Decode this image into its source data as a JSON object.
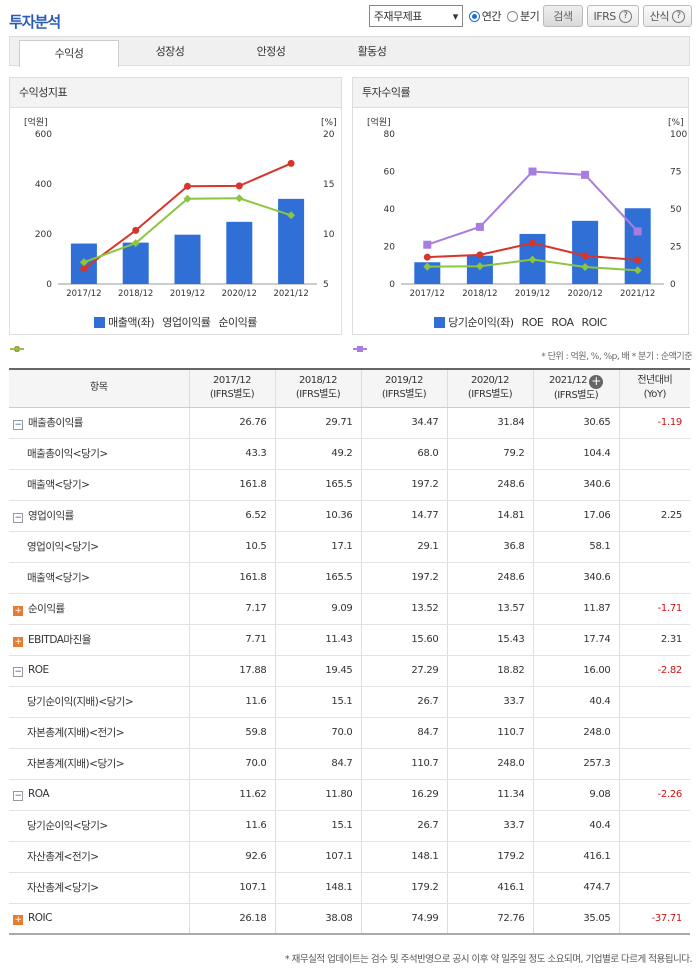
{
  "title": "투자분석",
  "controls": {
    "select": "주재무제표",
    "radio_annual": "연간",
    "radio_quarter": "분기",
    "search": "검색",
    "ifrs": "IFRS",
    "formula": "산식"
  },
  "tabs": [
    "수익성",
    "성장성",
    "안정성",
    "활동성"
  ],
  "colors": {
    "bar": "#2f6fd6",
    "red": "#d8352a",
    "green": "#8cc63f",
    "purple": "#a77ee0"
  },
  "chart_data": [
    {
      "type": "bar+line",
      "title": "수익성지표",
      "categories": [
        "2017/12",
        "2018/12",
        "2019/12",
        "2020/12",
        "2021/12"
      ],
      "left_unit": "[억원]",
      "right_unit": "[%]",
      "ylim_left": [
        0,
        600
      ],
      "ylim_right": [
        5,
        20
      ],
      "left_ticks": [
        "600",
        "400",
        "200",
        "0"
      ],
      "right_ticks": [
        "20",
        "15",
        "10",
        "5"
      ],
      "series": [
        {
          "name": "매출액(좌)",
          "type": "bar",
          "values": [
            161.8,
            165.5,
            197.2,
            248.6,
            340.6
          ]
        },
        {
          "name": "영업이익률",
          "type": "line",
          "values": [
            6.52,
            10.36,
            14.77,
            14.81,
            17.06
          ]
        },
        {
          "name": "순이익률",
          "type": "line",
          "values": [
            7.17,
            9.09,
            13.52,
            13.57,
            11.87
          ]
        }
      ]
    },
    {
      "type": "bar+line",
      "title": "투자수익률",
      "categories": [
        "2017/12",
        "2018/12",
        "2019/12",
        "2020/12",
        "2021/12"
      ],
      "left_unit": "[억원]",
      "right_unit": "[%]",
      "ylim_left": [
        0,
        80
      ],
      "ylim_right": [
        0,
        100
      ],
      "left_ticks": [
        "80",
        "60",
        "40",
        "20",
        "0"
      ],
      "right_ticks": [
        "100",
        "75",
        "50",
        "25",
        "0"
      ],
      "series": [
        {
          "name": "당기순이익(좌)",
          "type": "bar",
          "values": [
            11.6,
            15.1,
            26.7,
            33.7,
            40.4
          ]
        },
        {
          "name": "ROE",
          "type": "line",
          "values": [
            17.88,
            19.45,
            27.29,
            18.82,
            16.0
          ]
        },
        {
          "name": "ROA",
          "type": "line",
          "values": [
            11.62,
            11.8,
            16.29,
            11.34,
            9.08
          ]
        },
        {
          "name": "ROIC",
          "type": "line",
          "values": [
            26.18,
            38.08,
            74.99,
            72.76,
            35.05
          ]
        }
      ]
    }
  ],
  "unit_note": "* 단위 : 억원, %, %p, 배   * 분기 : 순액기준",
  "table": {
    "headers": [
      "항목",
      "2017/12\n(IFRS별도)",
      "2018/12\n(IFRS별도)",
      "2019/12\n(IFRS별도)",
      "2020/12\n(IFRS별도)",
      "2021/12\n(IFRS별도)",
      "전년대비\n(YoY)"
    ],
    "rows": [
      {
        "label": "매출총이익률",
        "toggle": "-",
        "vals": [
          "26.76",
          "29.71",
          "34.47",
          "31.84",
          "30.65"
        ],
        "yoy": "-1.19"
      },
      {
        "label": "매출총이익<당기>",
        "sub": true,
        "vals": [
          "43.3",
          "49.2",
          "68.0",
          "79.2",
          "104.4"
        ],
        "yoy": ""
      },
      {
        "label": "매출액<당기>",
        "sub": true,
        "vals": [
          "161.8",
          "165.5",
          "197.2",
          "248.6",
          "340.6"
        ],
        "yoy": ""
      },
      {
        "label": "영업이익률",
        "toggle": "-",
        "vals": [
          "6.52",
          "10.36",
          "14.77",
          "14.81",
          "17.06"
        ],
        "yoy": "2.25"
      },
      {
        "label": "영업이익<당기>",
        "sub": true,
        "vals": [
          "10.5",
          "17.1",
          "29.1",
          "36.8",
          "58.1"
        ],
        "yoy": ""
      },
      {
        "label": "매출액<당기>",
        "sub": true,
        "vals": [
          "161.8",
          "165.5",
          "197.2",
          "248.6",
          "340.6"
        ],
        "yoy": ""
      },
      {
        "label": "순이익률",
        "toggle": "+",
        "vals": [
          "7.17",
          "9.09",
          "13.52",
          "13.57",
          "11.87"
        ],
        "yoy": "-1.71"
      },
      {
        "label": "EBITDA마진율",
        "toggle": "+",
        "vals": [
          "7.71",
          "11.43",
          "15.60",
          "15.43",
          "17.74"
        ],
        "yoy": "2.31"
      },
      {
        "label": "ROE",
        "toggle": "-",
        "vals": [
          "17.88",
          "19.45",
          "27.29",
          "18.82",
          "16.00"
        ],
        "yoy": "-2.82"
      },
      {
        "label": "당기순이익(지배)<당기>",
        "sub": true,
        "vals": [
          "11.6",
          "15.1",
          "26.7",
          "33.7",
          "40.4"
        ],
        "yoy": ""
      },
      {
        "label": "자본총계(지배)<전기>",
        "sub": true,
        "vals": [
          "59.8",
          "70.0",
          "84.7",
          "110.7",
          "248.0"
        ],
        "yoy": ""
      },
      {
        "label": "자본총계(지배)<당기>",
        "sub": true,
        "vals": [
          "70.0",
          "84.7",
          "110.7",
          "248.0",
          "257.3"
        ],
        "yoy": ""
      },
      {
        "label": "ROA",
        "toggle": "-",
        "vals": [
          "11.62",
          "11.80",
          "16.29",
          "11.34",
          "9.08"
        ],
        "yoy": "-2.26"
      },
      {
        "label": "당기순이익<당기>",
        "sub": true,
        "vals": [
          "11.6",
          "15.1",
          "26.7",
          "33.7",
          "40.4"
        ],
        "yoy": ""
      },
      {
        "label": "자산총계<전기>",
        "sub": true,
        "vals": [
          "92.6",
          "107.1",
          "148.1",
          "179.2",
          "416.1"
        ],
        "yoy": ""
      },
      {
        "label": "자산총계<당기>",
        "sub": true,
        "vals": [
          "107.1",
          "148.1",
          "179.2",
          "416.1",
          "474.7"
        ],
        "yoy": ""
      },
      {
        "label": "ROIC",
        "toggle": "+",
        "vals": [
          "26.18",
          "38.08",
          "74.99",
          "72.76",
          "35.05"
        ],
        "yoy": "-37.71"
      }
    ]
  },
  "footnote": "* 재무실적 업데이트는 검수 및 주석반영으로 공시 이후 약 일주일 정도 소요되며, 기업별로 다르게 적용됩니다."
}
